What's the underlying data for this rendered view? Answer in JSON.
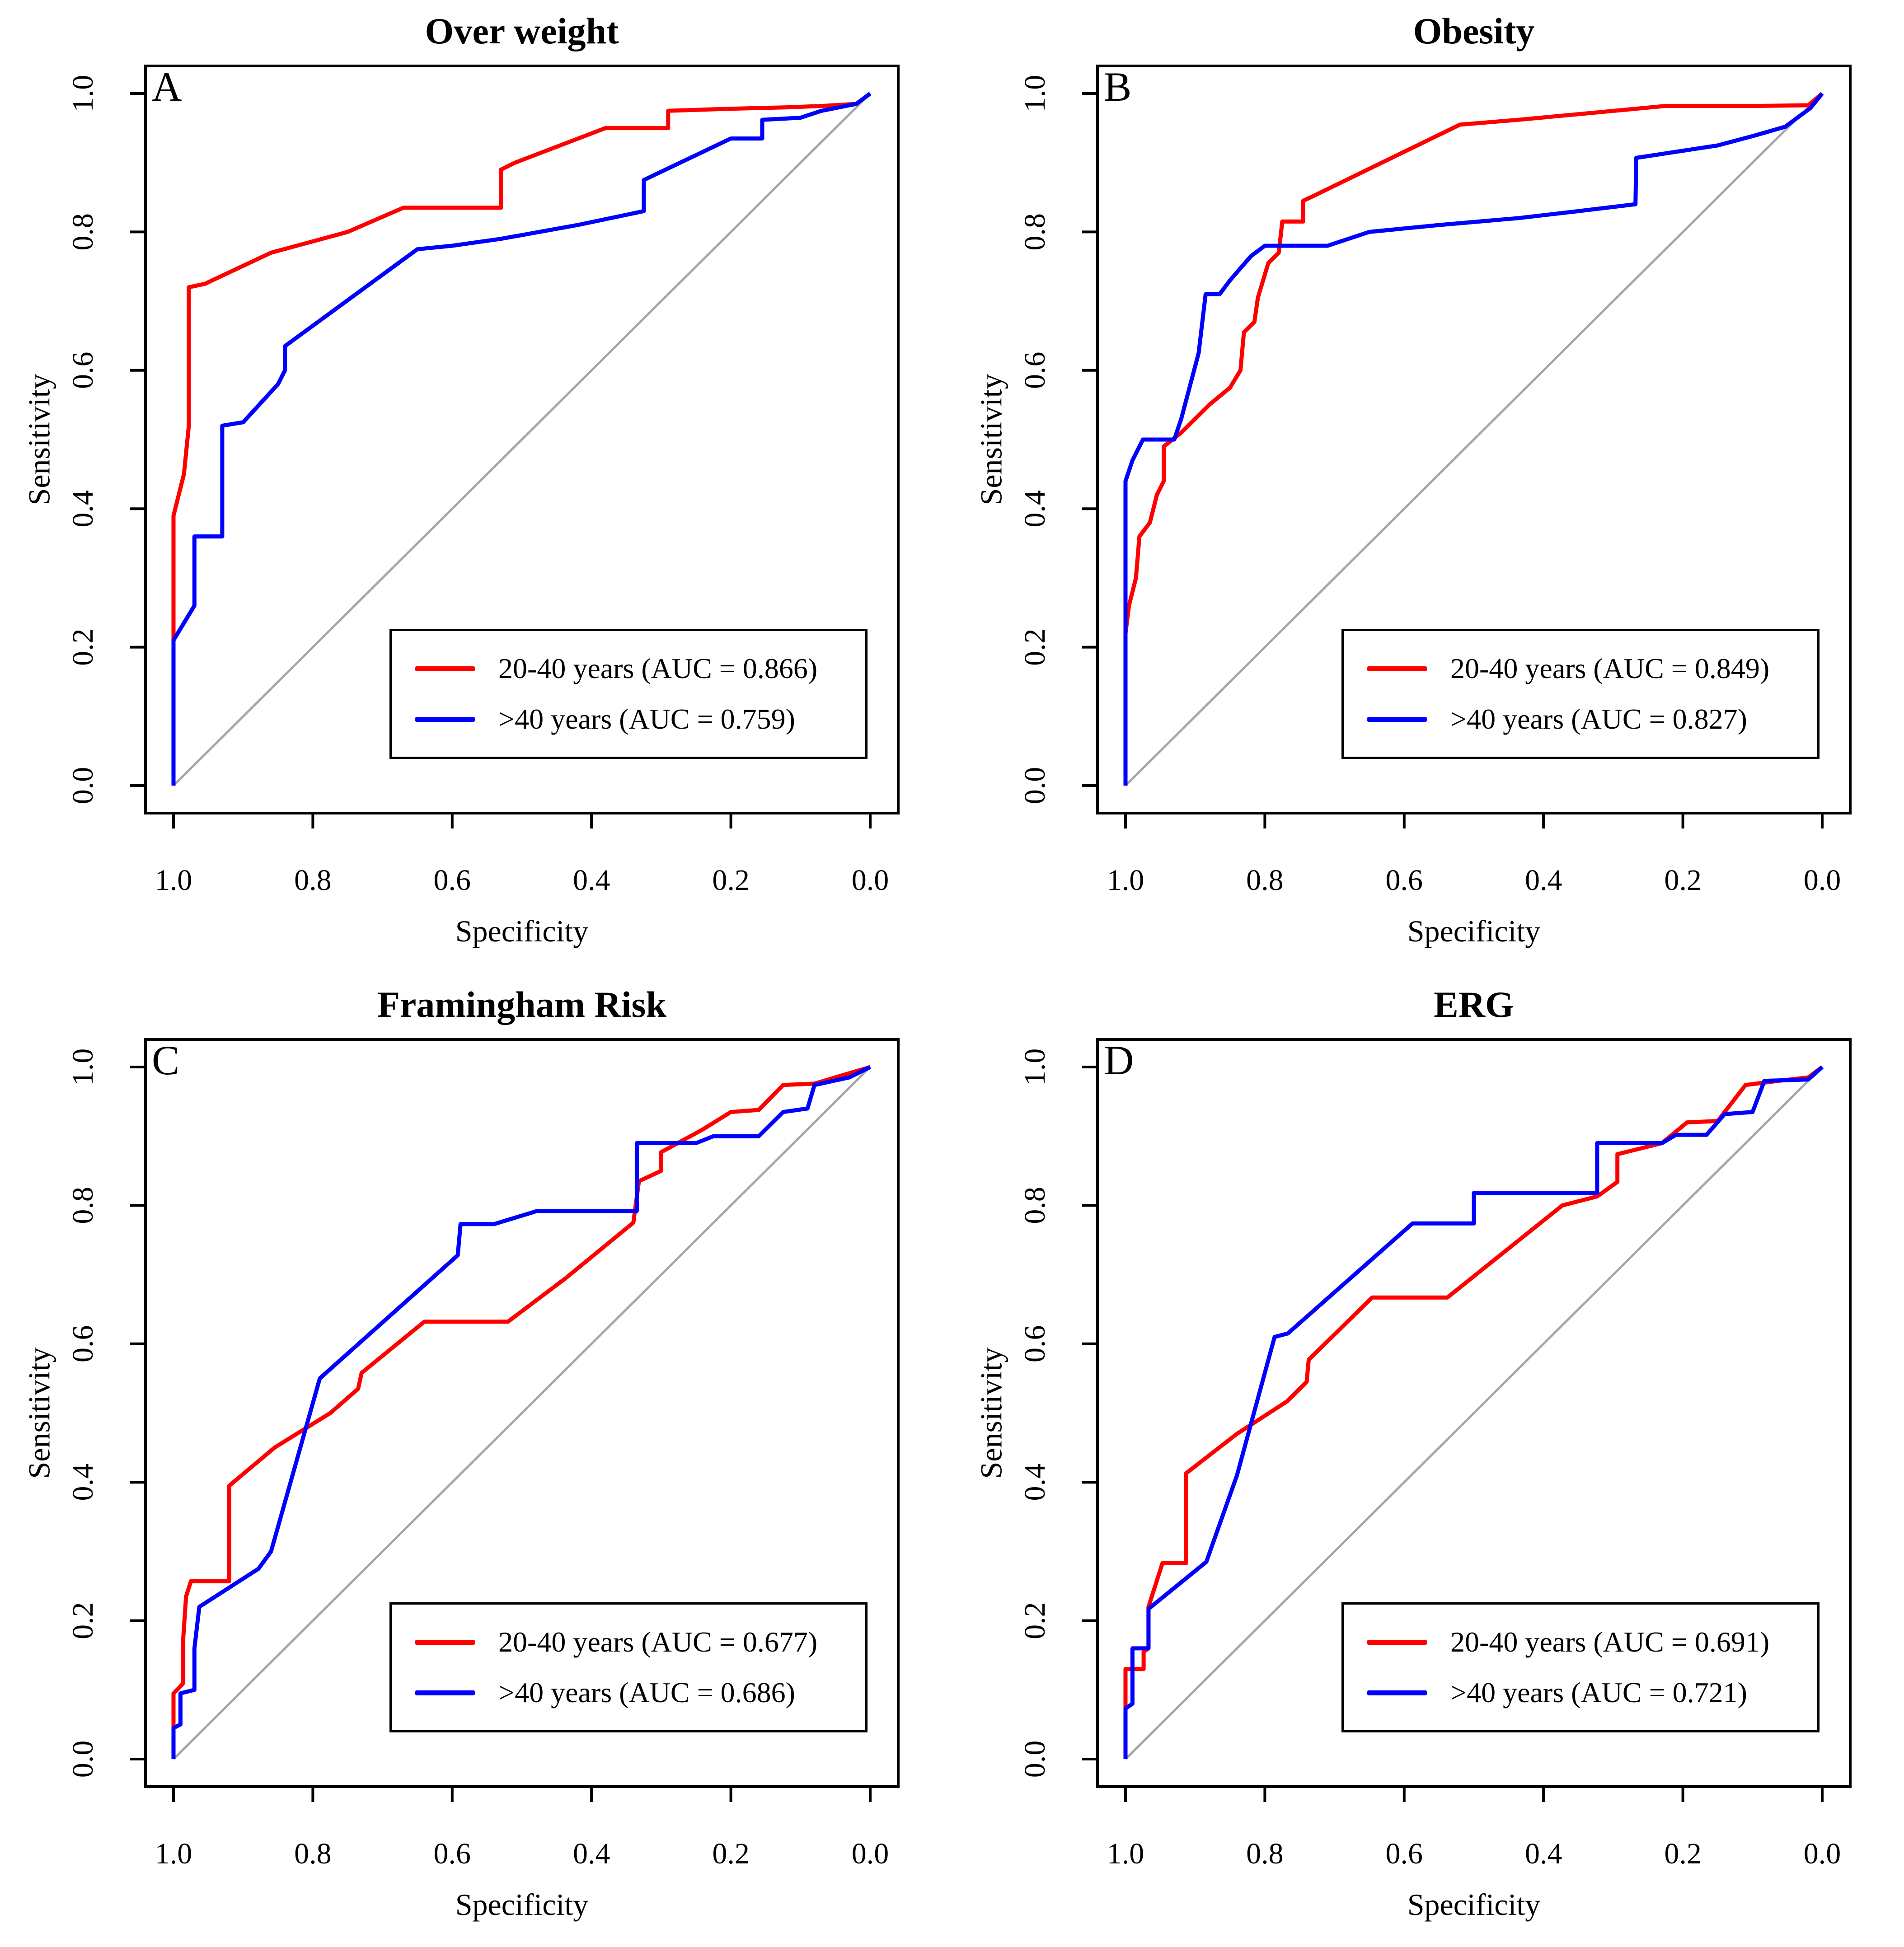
{
  "figure": {
    "layout": "2x2",
    "panel_count": 4,
    "description_visible_text_only": true
  },
  "colors": {
    "background": "#ffffff",
    "axis": "#000000",
    "text": "#000000",
    "series_red": "#ff0000",
    "series_blue": "#0000ff",
    "reference_diagonal": "#a6a6a6"
  },
  "chart_data": [
    {
      "type": "line",
      "panel": "A",
      "title": "Over weight",
      "xlabel": "Specificity",
      "ylabel": "Sensitivity",
      "x_axis_direction": "reversed",
      "xlim": [
        1.0,
        0.0
      ],
      "ylim": [
        0.0,
        1.0
      ],
      "x_ticks": [
        1.0,
        0.8,
        0.6,
        0.4,
        0.2,
        0.0
      ],
      "y_ticks": [
        0.0,
        0.2,
        0.4,
        0.6,
        0.8,
        1.0
      ],
      "grid": false,
      "reference_diagonal": true,
      "legend_position": "bottom-right",
      "series": [
        {
          "name": "20-40 years",
          "auc": 0.866,
          "legend_label": "20-40 years (AUC = 0.866)",
          "color": "#ff0000",
          "points": [
            [
              1.0,
              0.0
            ],
            [
              1.0,
              0.39
            ],
            [
              0.985,
              0.45
            ],
            [
              0.978,
              0.52
            ],
            [
              0.978,
              0.72
            ],
            [
              0.955,
              0.725
            ],
            [
              0.86,
              0.77
            ],
            [
              0.75,
              0.8
            ],
            [
              0.67,
              0.835
            ],
            [
              0.53,
              0.835
            ],
            [
              0.53,
              0.89
            ],
            [
              0.51,
              0.9
            ],
            [
              0.38,
              0.95
            ],
            [
              0.29,
              0.95
            ],
            [
              0.29,
              0.975
            ],
            [
              0.2,
              0.978
            ],
            [
              0.12,
              0.98
            ],
            [
              0.07,
              0.982
            ],
            [
              0.02,
              0.985
            ],
            [
              0.0,
              1.0
            ]
          ]
        },
        {
          "name": ">40 years",
          "auc": 0.759,
          "legend_label": ">40 years (AUC = 0.759)",
          "color": "#0000ff",
          "points": [
            [
              1.0,
              0.0
            ],
            [
              1.0,
              0.21
            ],
            [
              0.97,
              0.26
            ],
            [
              0.97,
              0.36
            ],
            [
              0.93,
              0.36
            ],
            [
              0.93,
              0.52
            ],
            [
              0.9,
              0.525
            ],
            [
              0.85,
              0.58
            ],
            [
              0.84,
              0.6
            ],
            [
              0.84,
              0.635
            ],
            [
              0.65,
              0.775
            ],
            [
              0.6,
              0.78
            ],
            [
              0.53,
              0.79
            ],
            [
              0.42,
              0.81
            ],
            [
              0.325,
              0.83
            ],
            [
              0.325,
              0.875
            ],
            [
              0.2,
              0.935
            ],
            [
              0.155,
              0.935
            ],
            [
              0.155,
              0.962
            ],
            [
              0.1,
              0.965
            ],
            [
              0.07,
              0.975
            ],
            [
              0.02,
              0.985
            ],
            [
              0.0,
              1.0
            ]
          ]
        }
      ]
    },
    {
      "type": "line",
      "panel": "B",
      "title": "Obesity",
      "xlabel": "Specificity",
      "ylabel": "Sensitivity",
      "x_axis_direction": "reversed",
      "xlim": [
        1.0,
        0.0
      ],
      "ylim": [
        0.0,
        1.0
      ],
      "x_ticks": [
        1.0,
        0.8,
        0.6,
        0.4,
        0.2,
        0.0
      ],
      "y_ticks": [
        0.0,
        0.2,
        0.4,
        0.6,
        0.8,
        1.0
      ],
      "grid": false,
      "reference_diagonal": true,
      "legend_position": "bottom-right",
      "series": [
        {
          "name": "20-40 years",
          "auc": 0.849,
          "legend_label": "20-40 years (AUC = 0.849)",
          "color": "#ff0000",
          "points": [
            [
              1.0,
              0.0
            ],
            [
              1.0,
              0.22
            ],
            [
              0.995,
              0.26
            ],
            [
              0.985,
              0.3
            ],
            [
              0.98,
              0.36
            ],
            [
              0.965,
              0.38
            ],
            [
              0.955,
              0.42
            ],
            [
              0.945,
              0.44
            ],
            [
              0.945,
              0.49
            ],
            [
              0.92,
              0.51
            ],
            [
              0.88,
              0.55
            ],
            [
              0.85,
              0.575
            ],
            [
              0.835,
              0.6
            ],
            [
              0.83,
              0.655
            ],
            [
              0.815,
              0.67
            ],
            [
              0.81,
              0.705
            ],
            [
              0.795,
              0.755
            ],
            [
              0.78,
              0.77
            ],
            [
              0.775,
              0.815
            ],
            [
              0.745,
              0.815
            ],
            [
              0.745,
              0.845
            ],
            [
              0.73,
              0.852
            ],
            [
              0.52,
              0.955
            ],
            [
              0.436,
              0.962
            ],
            [
              0.225,
              0.982
            ],
            [
              0.1,
              0.982
            ],
            [
              0.02,
              0.983
            ],
            [
              0.0,
              1.0
            ]
          ]
        },
        {
          "name": ">40 years",
          "auc": 0.827,
          "legend_label": ">40 years (AUC = 0.827)",
          "color": "#0000ff",
          "points": [
            [
              1.0,
              0.0
            ],
            [
              1.0,
              0.44
            ],
            [
              0.99,
              0.47
            ],
            [
              0.975,
              0.5
            ],
            [
              0.93,
              0.5
            ],
            [
              0.92,
              0.53
            ],
            [
              0.895,
              0.625
            ],
            [
              0.885,
              0.71
            ],
            [
              0.865,
              0.71
            ],
            [
              0.85,
              0.73
            ],
            [
              0.82,
              0.765
            ],
            [
              0.8,
              0.78
            ],
            [
              0.71,
              0.78
            ],
            [
              0.65,
              0.8
            ],
            [
              0.55,
              0.81
            ],
            [
              0.436,
              0.82
            ],
            [
              0.35,
              0.83
            ],
            [
              0.268,
              0.84
            ],
            [
              0.267,
              0.907
            ],
            [
              0.15,
              0.925
            ],
            [
              0.098,
              0.939
            ],
            [
              0.053,
              0.952
            ],
            [
              0.017,
              0.979
            ],
            [
              0.0,
              1.0
            ]
          ]
        }
      ]
    },
    {
      "type": "line",
      "panel": "C",
      "title": "Framingham Risk",
      "xlabel": "Specificity",
      "ylabel": "Sensitivity",
      "x_axis_direction": "reversed",
      "xlim": [
        1.0,
        0.0
      ],
      "ylim": [
        0.0,
        1.0
      ],
      "x_ticks": [
        1.0,
        0.8,
        0.6,
        0.4,
        0.2,
        0.0
      ],
      "y_ticks": [
        0.0,
        0.2,
        0.4,
        0.6,
        0.8,
        1.0
      ],
      "grid": false,
      "reference_diagonal": true,
      "legend_position": "bottom-right",
      "series": [
        {
          "name": "20-40 years",
          "auc": 0.677,
          "legend_label": "20-40 years (AUC = 0.677)",
          "color": "#ff0000",
          "points": [
            [
              1.0,
              0.0
            ],
            [
              1.0,
              0.095
            ],
            [
              0.99,
              0.105
            ],
            [
              0.986,
              0.11
            ],
            [
              0.986,
              0.175
            ],
            [
              0.982,
              0.235
            ],
            [
              0.975,
              0.257
            ],
            [
              0.92,
              0.257
            ],
            [
              0.92,
              0.395
            ],
            [
              0.855,
              0.45
            ],
            [
              0.775,
              0.5
            ],
            [
              0.735,
              0.535
            ],
            [
              0.73,
              0.558
            ],
            [
              0.64,
              0.632
            ],
            [
              0.52,
              0.632
            ],
            [
              0.437,
              0.695
            ],
            [
              0.34,
              0.775
            ],
            [
              0.332,
              0.835
            ],
            [
              0.3,
              0.85
            ],
            [
              0.3,
              0.877
            ],
            [
              0.24,
              0.91
            ],
            [
              0.2,
              0.935
            ],
            [
              0.16,
              0.938
            ],
            [
              0.125,
              0.974
            ],
            [
              0.08,
              0.976
            ],
            [
              0.05,
              0.985
            ],
            [
              0.0,
              1.0
            ]
          ]
        },
        {
          "name": ">40 years",
          "auc": 0.686,
          "legend_label": ">40 years (AUC = 0.686)",
          "color": "#0000ff",
          "points": [
            [
              1.0,
              0.0
            ],
            [
              1.0,
              0.045
            ],
            [
              0.99,
              0.05
            ],
            [
              0.99,
              0.095
            ],
            [
              0.97,
              0.1
            ],
            [
              0.97,
              0.16
            ],
            [
              0.963,
              0.22
            ],
            [
              0.878,
              0.275
            ],
            [
              0.86,
              0.3
            ],
            [
              0.79,
              0.55
            ],
            [
              0.592,
              0.728
            ],
            [
              0.588,
              0.773
            ],
            [
              0.54,
              0.773
            ],
            [
              0.478,
              0.792
            ],
            [
              0.335,
              0.792
            ],
            [
              0.335,
              0.89
            ],
            [
              0.25,
              0.89
            ],
            [
              0.225,
              0.9
            ],
            [
              0.16,
              0.9
            ],
            [
              0.125,
              0.935
            ],
            [
              0.09,
              0.94
            ],
            [
              0.08,
              0.974
            ],
            [
              0.03,
              0.985
            ],
            [
              0.0,
              1.0
            ]
          ]
        }
      ]
    },
    {
      "type": "line",
      "panel": "D",
      "title": "ERG",
      "xlabel": "Specificity",
      "ylabel": "Sensitivity",
      "x_axis_direction": "reversed",
      "xlim": [
        1.0,
        0.0
      ],
      "ylim": [
        0.0,
        1.0
      ],
      "x_ticks": [
        1.0,
        0.8,
        0.6,
        0.4,
        0.2,
        0.0
      ],
      "y_ticks": [
        0.0,
        0.2,
        0.4,
        0.6,
        0.8,
        1.0
      ],
      "grid": false,
      "reference_diagonal": true,
      "legend_position": "bottom-right",
      "series": [
        {
          "name": "20-40 years",
          "auc": 0.691,
          "legend_label": "20-40 years (AUC = 0.691)",
          "color": "#ff0000",
          "points": [
            [
              1.0,
              0.0
            ],
            [
              1.0,
              0.13
            ],
            [
              0.974,
              0.13
            ],
            [
              0.974,
              0.155
            ],
            [
              0.967,
              0.16
            ],
            [
              0.967,
              0.22
            ],
            [
              0.947,
              0.283
            ],
            [
              0.913,
              0.283
            ],
            [
              0.913,
              0.413
            ],
            [
              0.84,
              0.47
            ],
            [
              0.768,
              0.517
            ],
            [
              0.74,
              0.545
            ],
            [
              0.737,
              0.577
            ],
            [
              0.646,
              0.667
            ],
            [
              0.538,
              0.667
            ],
            [
              0.373,
              0.8
            ],
            [
              0.323,
              0.813
            ],
            [
              0.294,
              0.834
            ],
            [
              0.294,
              0.874
            ],
            [
              0.23,
              0.89
            ],
            [
              0.194,
              0.92
            ],
            [
              0.15,
              0.922
            ],
            [
              0.11,
              0.974
            ],
            [
              0.063,
              0.98
            ],
            [
              0.02,
              0.985
            ],
            [
              0.0,
              1.0
            ]
          ]
        },
        {
          "name": ">40 years",
          "auc": 0.721,
          "legend_label": ">40 years (AUC = 0.721)",
          "color": "#0000ff",
          "points": [
            [
              1.0,
              0.0
            ],
            [
              1.0,
              0.073
            ],
            [
              0.99,
              0.08
            ],
            [
              0.99,
              0.16
            ],
            [
              0.967,
              0.16
            ],
            [
              0.967,
              0.217
            ],
            [
              0.884,
              0.285
            ],
            [
              0.84,
              0.41
            ],
            [
              0.786,
              0.61
            ],
            [
              0.767,
              0.615
            ],
            [
              0.588,
              0.774
            ],
            [
              0.5,
              0.774
            ],
            [
              0.5,
              0.818
            ],
            [
              0.323,
              0.818
            ],
            [
              0.323,
              0.89
            ],
            [
              0.23,
              0.89
            ],
            [
              0.21,
              0.902
            ],
            [
              0.166,
              0.902
            ],
            [
              0.14,
              0.932
            ],
            [
              0.1,
              0.935
            ],
            [
              0.083,
              0.98
            ],
            [
              0.02,
              0.982
            ],
            [
              0.0,
              1.0
            ]
          ]
        }
      ]
    }
  ]
}
